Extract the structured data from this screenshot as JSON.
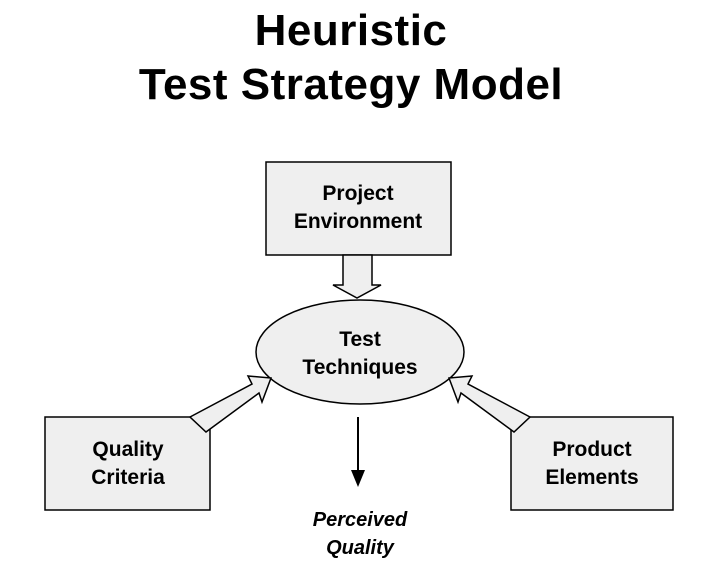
{
  "title": {
    "line1": "Heuristic",
    "line2": "Test Strategy Model"
  },
  "nodes": {
    "project_environment": {
      "line1": "Project",
      "line2": "Environment"
    },
    "test_techniques": {
      "line1": "Test",
      "line2": "Techniques"
    },
    "quality_criteria": {
      "line1": "Quality",
      "line2": "Criteria"
    },
    "product_elements": {
      "line1": "Product",
      "line2": "Elements"
    },
    "perceived_quality": {
      "line1": "Perceived",
      "line2": "Quality"
    }
  },
  "colors": {
    "box_fill": "#efefef",
    "stroke": "#000000",
    "text": "#000000"
  }
}
